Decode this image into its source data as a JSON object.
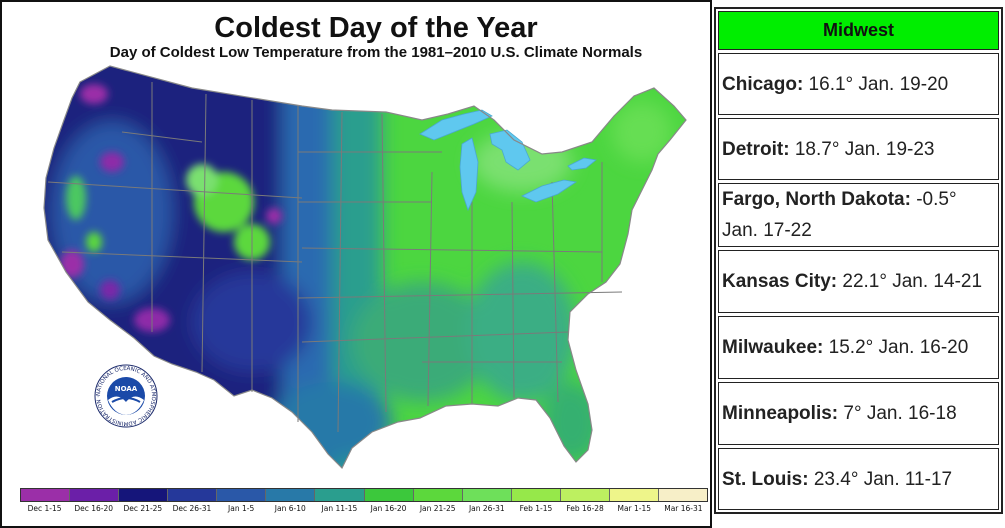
{
  "map": {
    "title": "Coldest Day of the Year",
    "subtitle": "Day of Coldest Low Temperature from the 1981–2010 U.S. Climate Normals",
    "logo_text": "NOAA",
    "logo_ring_text": "NATIONAL OCEANIC AND ATMOSPHERIC ADMINISTRATION · U.S. DEPARTMENT OF COMMERCE",
    "legend": [
      {
        "label": "Dec 1-15",
        "color": "#9b2fa8"
      },
      {
        "label": "Dec 16-20",
        "color": "#6b1fa8"
      },
      {
        "label": "Dec 21-25",
        "color": "#15157a"
      },
      {
        "label": "Dec 26-31",
        "color": "#25389a"
      },
      {
        "label": "Jan 1-5",
        "color": "#2a58a8"
      },
      {
        "label": "Jan 6-10",
        "color": "#2879a8"
      },
      {
        "label": "Jan 11-15",
        "color": "#2a9e8e"
      },
      {
        "label": "Jan 16-20",
        "color": "#3cc83c"
      },
      {
        "label": "Jan 21-25",
        "color": "#5cd83c"
      },
      {
        "label": "Jan 26-31",
        "color": "#6ee05a"
      },
      {
        "label": "Feb 1-15",
        "color": "#96e84a"
      },
      {
        "label": "Feb 16-28",
        "color": "#bdf060"
      },
      {
        "label": "Mar 1-15",
        "color": "#eef58a"
      },
      {
        "label": "Mar 16-31",
        "color": "#f7efc8"
      }
    ],
    "colors": {
      "lakes": "#5fc8ef",
      "ocean": "#ffffff",
      "state_lines": "#7a7a7a",
      "east_green": "#4cd640",
      "central_teal": "#2a9e8e",
      "west_navy": "#1a237e",
      "west_blue": "#2a58a8",
      "west_purple": "#8e2aa8",
      "rockies_green": "#5cd83c"
    }
  },
  "table": {
    "header": "Midwest",
    "rows": [
      {
        "city": "Chicago:",
        "detail": " 16.1° Jan. 19-20"
      },
      {
        "city": "Detroit:",
        "detail": " 18.7° Jan. 19-23"
      },
      {
        "city": "Fargo, North Dakota:",
        "detail": " -0.5° Jan. 17-22"
      },
      {
        "city": "Kansas City:",
        "detail": " 22.1° Jan. 14-21"
      },
      {
        "city": "Milwaukee:",
        "detail": " 15.2° Jan. 16-20"
      },
      {
        "city": "Minneapolis:",
        "detail": " 7° Jan. 16-18"
      },
      {
        "city": "St. Louis:",
        "detail": " 23.4° Jan. 11-17"
      }
    ]
  }
}
